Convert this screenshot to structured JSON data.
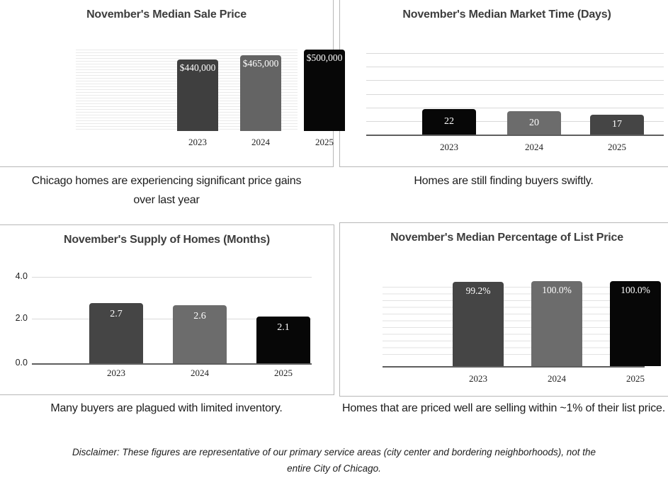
{
  "chart_data": [
    {
      "type": "bar",
      "title": "November's Median Sale Price",
      "categories": [
        "2023",
        "2024",
        "2025"
      ],
      "values": [
        440000,
        465000,
        500000
      ],
      "value_labels": [
        "$440,000",
        "$465,000",
        "$500,000"
      ],
      "bar_colors": [
        "#3f3f3f",
        "#646464",
        "#070707"
      ],
      "ylim": [
        0,
        500000
      ],
      "grid": "fine horizontal stripes across plot area",
      "legend": "none",
      "caption": "Chicago homes are experiencing significant price gains over last year"
    },
    {
      "type": "bar",
      "title": "November's Median Market Time (Days)",
      "categories": [
        "2023",
        "2024",
        "2025"
      ],
      "values": [
        22,
        20,
        17
      ],
      "value_labels": [
        "22",
        "20",
        "17"
      ],
      "bar_colors": [
        "#070707",
        "#6c6c6c",
        "#454545"
      ],
      "ylim": [
        0,
        70
      ],
      "grid": "horizontal gridlines every 10 days, dark baseline at 0",
      "legend": "none",
      "caption": "Homes are still finding buyers swiftly."
    },
    {
      "type": "bar",
      "title": "November's Supply of Homes (Months)",
      "categories": [
        "2023",
        "2024",
        "2025"
      ],
      "values": [
        2.7,
        2.6,
        2.1
      ],
      "value_labels": [
        "2.7",
        "2.6",
        "2.1"
      ],
      "bar_colors": [
        "#454545",
        "#6c6c6c",
        "#070707"
      ],
      "ylim": [
        0,
        4
      ],
      "y_ticks": [
        "4.0",
        "2.0",
        "0.0"
      ],
      "grid": "horizontal gridlines at 0.0 / 2.0 / 4.0, dark baseline at 0",
      "legend": "none",
      "caption": "Many buyers are plagued with limited inventory."
    },
    {
      "type": "bar",
      "title": "November's Median Percentage of List Price",
      "categories": [
        "2023",
        "2024",
        "2025"
      ],
      "values": [
        99.2,
        100.0,
        100.0
      ],
      "value_labels": [
        "99.2%",
        "100.0%",
        "100.0%"
      ],
      "bar_colors": [
        "#454545",
        "#6c6c6c",
        "#070707"
      ],
      "ylim": [
        0,
        100
      ],
      "grid": "fine horizontal gridlines, dark baseline",
      "legend": "none",
      "caption": "Homes that are priced well are selling within ~1% of their list price."
    }
  ],
  "disclaimer": "Disclaimer: These figures are representative of our primary service areas (city center and bordering neighborhoods), not the entire City of Chicago."
}
